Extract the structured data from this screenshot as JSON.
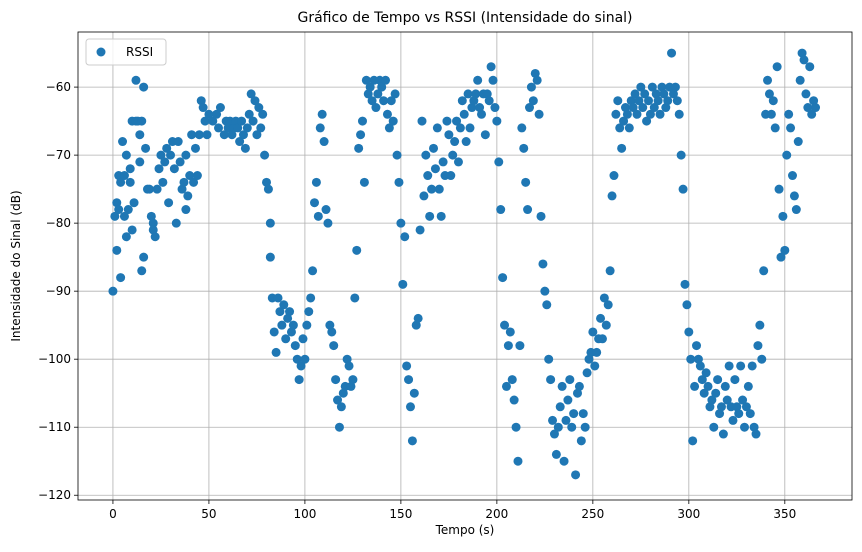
{
  "chart_data": {
    "type": "scatter",
    "title": "Gráfico de Tempo vs RSSI (Intensidade do sinal)",
    "xlabel": "Tempo (s)",
    "ylabel": "Intensidade do Sinal (dB)",
    "xlim": [
      -18.2,
      385
    ],
    "ylim": [
      -120.7,
      -51.9
    ],
    "xticks": [
      0,
      50,
      100,
      150,
      200,
      250,
      300,
      350
    ],
    "yticks": [
      {
        "value": -120,
        "label": "−120"
      },
      {
        "value": -110,
        "label": "−110"
      },
      {
        "value": -100,
        "label": "−100"
      },
      {
        "value": -90,
        "label": "−90"
      },
      {
        "value": -80,
        "label": "−80"
      },
      {
        "value": -70,
        "label": "−70"
      },
      {
        "value": -60,
        "label": "−60"
      }
    ],
    "grid": true,
    "legend": "upper left",
    "x": [
      0,
      1,
      2,
      2,
      3,
      3,
      4,
      4,
      5,
      6,
      6,
      7,
      7,
      8,
      9,
      9,
      10,
      10,
      11,
      12,
      12,
      13,
      14,
      14,
      15,
      15,
      16,
      16,
      17,
      18,
      19,
      20,
      21,
      21,
      22,
      23,
      24,
      25,
      26,
      27,
      28,
      29,
      30,
      31,
      32,
      33,
      34,
      35,
      36,
      37,
      38,
      38,
      39,
      40,
      41,
      42,
      43,
      44,
      45,
      46,
      47,
      48,
      49,
      50,
      52,
      54,
      55,
      56,
      58,
      59,
      60,
      61,
      62,
      63,
      64,
      65,
      66,
      67,
      68,
      69,
      70,
      71,
      72,
      73,
      74,
      75,
      76,
      77,
      78,
      79,
      80,
      81,
      82,
      82,
      83,
      84,
      85,
      86,
      87,
      88,
      89,
      90,
      91,
      92,
      93,
      94,
      95,
      96,
      97,
      98,
      99,
      100,
      101,
      102,
      103,
      104,
      105,
      106,
      107,
      108,
      109,
      110,
      111,
      112,
      113,
      114,
      115,
      116,
      117,
      118,
      119,
      120,
      121,
      122,
      123,
      124,
      125,
      126,
      127,
      128,
      129,
      130,
      131,
      132,
      133,
      134,
      135,
      136,
      137,
      138,
      139,
      140,
      141,
      142,
      143,
      144,
      145,
      146,
      147,
      148,
      149,
      150,
      151,
      152,
      153,
      154,
      155,
      156,
      157,
      158,
      159,
      160,
      161,
      162,
      163,
      164,
      165,
      166,
      167,
      168,
      169,
      170,
      171,
      172,
      173,
      174,
      175,
      176,
      177,
      178,
      179,
      180,
      181,
      182,
      183,
      184,
      185,
      186,
      187,
      188,
      189,
      190,
      191,
      192,
      193,
      194,
      195,
      196,
      197,
      198,
      199,
      200,
      201,
      202,
      203,
      204,
      205,
      206,
      207,
      208,
      209,
      210,
      211,
      212,
      213,
      214,
      215,
      216,
      217,
      218,
      219,
      220,
      221,
      222,
      223,
      224,
      225,
      226,
      227,
      228,
      229,
      230,
      231,
      232,
      233,
      234,
      235,
      236,
      237,
      238,
      239,
      240,
      241,
      242,
      243,
      244,
      245,
      246,
      247,
      248,
      249,
      250,
      251,
      252,
      253,
      254,
      255,
      256,
      257,
      258,
      259,
      260,
      261,
      262,
      263,
      264,
      265,
      266,
      267,
      268,
      269,
      270,
      271,
      272,
      273,
      274,
      275,
      276,
      277,
      278,
      279,
      280,
      281,
      282,
      283,
      284,
      285,
      286,
      287,
      288,
      289,
      290,
      291,
      292,
      293,
      294,
      295,
      296,
      297,
      298,
      299,
      300,
      301,
      302,
      303,
      304,
      305,
      306,
      307,
      308,
      309,
      310,
      311,
      312,
      313,
      314,
      315,
      316,
      317,
      318,
      319,
      320,
      321,
      322,
      323,
      324,
      325,
      326,
      327,
      328,
      329,
      330,
      331,
      332,
      333,
      334,
      335,
      336,
      337,
      338,
      339,
      340,
      341,
      342,
      343,
      344,
      345,
      346,
      347,
      348,
      349,
      350,
      351,
      352,
      353,
      354,
      355,
      356,
      357,
      358,
      359,
      360,
      361,
      362,
      363,
      364,
      365,
      366
    ],
    "series": [
      {
        "name": "RSSI",
        "color": "#1f77b4",
        "values": [
          -90,
          -79,
          -84,
          -77,
          -73,
          -78,
          -88,
          -74,
          -68,
          -73,
          -79,
          -82,
          -70,
          -78,
          -74,
          -72,
          -65,
          -81,
          -77,
          -59,
          -65,
          -65,
          -67,
          -71,
          -87,
          -65,
          -85,
          -60,
          -69,
          -75,
          -75,
          -79,
          -80,
          -81,
          -82,
          -75,
          -72,
          -70,
          -74,
          -71,
          -69,
          -77,
          -70,
          -68,
          -72,
          -80,
          -68,
          -71,
          -75,
          -74,
          -78,
          -70,
          -76,
          -73,
          -67,
          -74,
          -69,
          -73,
          -67,
          -62,
          -63,
          -65,
          -67,
          -64,
          -65,
          -64,
          -66,
          -63,
          -67,
          -65,
          -66,
          -65,
          -67,
          -66,
          -65,
          -66,
          -68,
          -65,
          -67,
          -69,
          -66,
          -64,
          -61,
          -65,
          -62,
          -67,
          -63,
          -66,
          -64,
          -70,
          -74,
          -75,
          -80,
          -85,
          -91,
          -96,
          -99,
          -91,
          -93,
          -95,
          -92,
          -97,
          -94,
          -93,
          -96,
          -95,
          -98,
          -100,
          -103,
          -101,
          -97,
          -100,
          -95,
          -93,
          -91,
          -87,
          -77,
          -74,
          -79,
          -66,
          -64,
          -68,
          -78,
          -80,
          -95,
          -96,
          -98,
          -103,
          -106,
          -110,
          -107,
          -105,
          -104,
          -100,
          -101,
          -104,
          -103,
          -91,
          -84,
          -69,
          -67,
          -65,
          -74,
          -59,
          -61,
          -60,
          -62,
          -59,
          -63,
          -61,
          -59,
          -60,
          -62,
          -59,
          -64,
          -66,
          -62,
          -65,
          -61,
          -70,
          -74,
          -80,
          -89,
          -82,
          -101,
          -103,
          -107,
          -112,
          -105,
          -95,
          -94,
          -81,
          -65,
          -76,
          -70,
          -73,
          -79,
          -75,
          -69,
          -72,
          -66,
          -75,
          -79,
          -71,
          -73,
          -65,
          -67,
          -73,
          -70,
          -68,
          -65,
          -71,
          -66,
          -62,
          -64,
          -68,
          -61,
          -66,
          -63,
          -62,
          -61,
          -59,
          -63,
          -64,
          -61,
          -67,
          -61,
          -62,
          -57,
          -59,
          -63,
          -65,
          -71,
          -78,
          -88,
          -95,
          -104,
          -98,
          -96,
          -103,
          -106,
          -110,
          -115,
          -98,
          -66,
          -69,
          -74,
          -78,
          -63,
          -60,
          -62,
          -58,
          -59,
          -64,
          -79,
          -86,
          -90,
          -92,
          -100,
          -103,
          -109,
          -111,
          -114,
          -110,
          -107,
          -104,
          -115,
          -109,
          -106,
          -103,
          -110,
          -108,
          -117,
          -105,
          -104,
          -112,
          -108,
          -110,
          -102,
          -100,
          -99,
          -96,
          -101,
          -99,
          -97,
          -94,
          -97,
          -91,
          -95,
          -92,
          -87,
          -76,
          -73,
          -64,
          -62,
          -66,
          -69,
          -65,
          -63,
          -64,
          -66,
          -62,
          -63,
          -61,
          -64,
          -62,
          -60,
          -63,
          -61,
          -65,
          -62,
          -64,
          -60,
          -63,
          -61,
          -62,
          -64,
          -60,
          -61,
          -63,
          -62,
          -60,
          -55,
          -61,
          -60,
          -62,
          -64,
          -70,
          -75,
          -89,
          -92,
          -96,
          -100,
          -112,
          -104,
          -98,
          -100,
          -101,
          -103,
          -105,
          -102,
          -104,
          -107,
          -106,
          -110,
          -105,
          -103,
          -108,
          -107,
          -111,
          -104,
          -106,
          -101,
          -107,
          -109,
          -103,
          -107,
          -108,
          -101,
          -106,
          -110,
          -107,
          -104,
          -108,
          -101,
          -110,
          -111,
          -98,
          -95,
          -100,
          -87,
          -64,
          -59,
          -61,
          -64,
          -62,
          -66,
          -57,
          -75,
          -85,
          -79,
          -84,
          -70,
          -64,
          -66,
          -73,
          -76,
          -78,
          -68,
          -59,
          -55,
          -56,
          -61,
          -63,
          -57,
          -64,
          -62,
          -63
        ]
      }
    ]
  }
}
